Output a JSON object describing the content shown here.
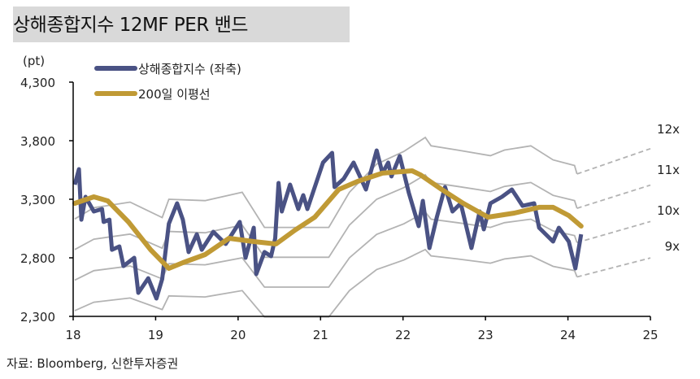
{
  "title": "상해종합지수 12MF PER 밴드",
  "source": "자료: Bloomberg, 신한투자증권",
  "chart_data": {
    "type": "line",
    "title": "상해종합지수 12MF PER 밴드",
    "ylabel": "(pt)",
    "ylim": [
      2300,
      4300
    ],
    "yticks": [
      "2,300",
      "2,800",
      "3,300",
      "3,800",
      "4,300"
    ],
    "ytick_values": [
      2300,
      2800,
      3300,
      3800,
      4300
    ],
    "xlim": [
      18,
      25
    ],
    "xticks": [
      "18",
      "19",
      "20",
      "21",
      "22",
      "23",
      "24",
      "25"
    ],
    "xtick_values": [
      18,
      19,
      20,
      21,
      22,
      23,
      24,
      25
    ],
    "legend": "top-left",
    "grid": false,
    "colors": {
      "index": "#4a5284",
      "ma": "#c09a35",
      "band": "#b3b3b3"
    },
    "series": [
      {
        "name": "상해종합지수 (좌축)",
        "x": [
          18.02,
          18.07,
          18.1,
          18.15,
          18.25,
          18.35,
          18.37,
          18.44,
          18.47,
          18.56,
          18.61,
          18.74,
          18.79,
          18.91,
          19.01,
          19.08,
          19.16,
          19.26,
          19.33,
          19.4,
          19.5,
          19.56,
          19.7,
          19.85,
          20.02,
          20.09,
          20.19,
          20.22,
          20.32,
          20.4,
          20.45,
          20.49,
          20.53,
          20.63,
          20.73,
          20.79,
          20.84,
          20.94,
          21.03,
          21.14,
          21.17,
          21.28,
          21.4,
          21.55,
          21.68,
          21.75,
          21.82,
          21.86,
          21.96,
          22.07,
          22.19,
          22.24,
          22.32,
          22.41,
          22.51,
          22.6,
          22.7,
          22.83,
          22.93,
          22.98,
          23.06,
          23.2,
          23.32,
          23.45,
          23.59,
          23.65,
          23.82,
          23.89,
          24.01,
          24.09,
          24.16
        ],
        "values": [
          3425,
          3557,
          3126,
          3321,
          3196,
          3217,
          3106,
          3126,
          2869,
          2897,
          2730,
          2800,
          2501,
          2626,
          2453,
          2619,
          3091,
          3265,
          3126,
          2849,
          3001,
          2869,
          3022,
          2918,
          3106,
          2800,
          3057,
          2661,
          2849,
          2814,
          2967,
          3439,
          3196,
          3425,
          3217,
          3335,
          3217,
          3425,
          3613,
          3696,
          3404,
          3474,
          3613,
          3383,
          3717,
          3523,
          3613,
          3495,
          3669,
          3356,
          3071,
          3286,
          2883,
          3147,
          3404,
          3196,
          3265,
          2883,
          3196,
          3043,
          3265,
          3321,
          3383,
          3244,
          3265,
          3057,
          2939,
          3057,
          2939,
          2710,
          3001
        ]
      },
      {
        "name": "200일 이평선",
        "x": [
          18.02,
          18.25,
          18.42,
          18.67,
          18.94,
          19.16,
          19.33,
          19.6,
          19.89,
          20.19,
          20.46,
          20.69,
          20.93,
          21.22,
          21.45,
          21.75,
          22.11,
          22.21,
          22.47,
          22.73,
          23.03,
          23.35,
          23.65,
          23.82,
          24.01,
          24.16
        ],
        "values": [
          3265,
          3321,
          3286,
          3106,
          2869,
          2710,
          2758,
          2828,
          2967,
          2939,
          2918,
          3036,
          3147,
          3383,
          3453,
          3523,
          3543,
          3509,
          3383,
          3265,
          3147,
          3182,
          3231,
          3231,
          3161,
          3071
        ]
      }
    ],
    "bands": {
      "x": [
        18.02,
        18.25,
        18.69,
        19.08,
        19.16,
        19.6,
        20.05,
        20.32,
        20.51,
        21.1,
        21.35,
        21.68,
        22.01,
        22.27,
        22.34,
        22.66,
        23.06,
        23.23,
        23.55,
        23.82,
        24.08,
        24.11
      ],
      "forecast_x": 25,
      "lines": [
        {
          "label": "9x",
          "values": [
            2349,
            2421,
            2457,
            2358,
            2475,
            2466,
            2520,
            2295,
            2295,
            2295,
            2520,
            2700,
            2781,
            2871,
            2817,
            2790,
            2754,
            2790,
            2817,
            2727,
            2691,
            2637
          ],
          "forecast": 2799
        },
        {
          "label": "10x",
          "values": [
            2610,
            2690,
            2730,
            2620,
            2750,
            2740,
            2800,
            2550,
            2550,
            2550,
            2800,
            3000,
            3090,
            3190,
            3130,
            3100,
            3060,
            3100,
            3130,
            3030,
            2990,
            2930
          ],
          "forecast": 3110
        },
        {
          "label": "11x",
          "values": [
            2871,
            2959,
            3003,
            2882,
            3025,
            3014,
            3080,
            2805,
            2805,
            2805,
            3080,
            3300,
            3399,
            3509,
            3443,
            3410,
            3366,
            3410,
            3443,
            3333,
            3289,
            3223
          ],
          "forecast": 3421
        },
        {
          "label": "12x",
          "values": [
            3132,
            3228,
            3276,
            3144,
            3300,
            3288,
            3360,
            3060,
            3060,
            3060,
            3360,
            3600,
            3708,
            3828,
            3756,
            3720,
            3672,
            3720,
            3756,
            3636,
            3588,
            3516
          ],
          "forecast": 3732
        }
      ]
    }
  }
}
